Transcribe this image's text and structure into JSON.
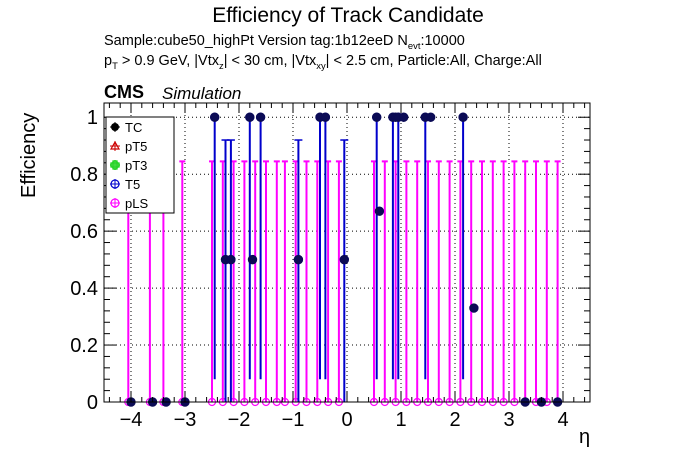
{
  "chart_data": {
    "type": "scatter",
    "title": "Efficiency of Track Candidate",
    "subtitle_sample": "Sample:cube50_highPt   Version tag:1b12eeD  N",
    "subtitle_sample_sub": "evt",
    "subtitle_sample_tail": ":10000",
    "cuts": {
      "p": "p",
      "p_sub": "T",
      "a": " > 0.9 GeV, |Vtx",
      "a_sub": "z",
      "b": "| < 30 cm, |Vtx",
      "b_sub": "xy",
      "c": "| < 2.5 cm, Particle:All, Charge:All"
    },
    "cms_label": "CMS",
    "simulation_label": "Simulation",
    "xlabel": "η",
    "ylabel": "Efficiency",
    "xlim": [
      -4.5,
      4.5
    ],
    "ylim": [
      0,
      1.05
    ],
    "x_ticks": [
      "−4",
      "−3",
      "−2",
      "−1",
      "0",
      "1",
      "2",
      "3",
      "4"
    ],
    "x_tick_values": [
      -4,
      -3,
      -2,
      -1,
      0,
      1,
      2,
      3,
      4
    ],
    "y_ticks": [
      "0",
      "0.2",
      "0.4",
      "0.6",
      "0.8",
      "1"
    ],
    "y_tick_values": [
      0,
      0.2,
      0.4,
      0.6,
      0.8,
      1
    ],
    "grid": true,
    "legend_position": "top-left",
    "legend": [
      {
        "name": "TC",
        "color": "#000000",
        "marker": "filled-circle"
      },
      {
        "name": "pT5",
        "color": "#cc0000",
        "marker": "open-triangle"
      },
      {
        "name": "pT3",
        "color": "#00cc00",
        "marker": "open-cross"
      },
      {
        "name": "T5",
        "color": "#0000cc",
        "marker": "open-circle"
      },
      {
        "name": "pLS",
        "color": "#ff00ff",
        "marker": "open-star"
      }
    ],
    "series": [
      {
        "name": "TC",
        "color": "#0b0b55",
        "points": [
          {
            "x": -4.0,
            "y": 0
          },
          {
            "x": -3.6,
            "y": 0
          },
          {
            "x": -3.35,
            "y": 0
          },
          {
            "x": -3.0,
            "y": 0
          },
          {
            "x": -2.45,
            "y": 1.0
          },
          {
            "x": -2.25,
            "y": 0.5
          },
          {
            "x": -2.15,
            "y": 0.5
          },
          {
            "x": -1.8,
            "y": 1.0
          },
          {
            "x": -1.75,
            "y": 0.5
          },
          {
            "x": -1.6,
            "y": 1.0
          },
          {
            "x": -0.9,
            "y": 0.5
          },
          {
            "x": -0.5,
            "y": 1.0
          },
          {
            "x": -0.4,
            "y": 1.0
          },
          {
            "x": -0.05,
            "y": 0.5
          },
          {
            "x": 0.55,
            "y": 1.0
          },
          {
            "x": 0.6,
            "y": 0.67
          },
          {
            "x": 0.85,
            "y": 1.0
          },
          {
            "x": 0.9,
            "y": 1.0
          },
          {
            "x": 0.95,
            "y": 1.0
          },
          {
            "x": 1.05,
            "y": 1.0
          },
          {
            "x": 1.45,
            "y": 1.0
          },
          {
            "x": 1.55,
            "y": 1.0
          },
          {
            "x": 2.15,
            "y": 1.0
          },
          {
            "x": 2.35,
            "y": 0.33
          },
          {
            "x": 3.3,
            "y": 0
          },
          {
            "x": 3.6,
            "y": 0
          },
          {
            "x": 3.9,
            "y": 0
          }
        ]
      },
      {
        "name": "T5",
        "color": "#0000cc",
        "points": [
          {
            "x": -2.45,
            "y": 1.0
          },
          {
            "x": -2.25,
            "y": 0.5
          },
          {
            "x": -2.15,
            "y": 0.5
          },
          {
            "x": -1.8,
            "y": 1.0
          },
          {
            "x": -1.6,
            "y": 1.0
          },
          {
            "x": -0.9,
            "y": 0.5
          },
          {
            "x": -0.5,
            "y": 1.0
          },
          {
            "x": -0.4,
            "y": 1.0
          },
          {
            "x": -0.05,
            "y": 0.5
          },
          {
            "x": 0.55,
            "y": 1.0
          },
          {
            "x": 0.85,
            "y": 1.0
          },
          {
            "x": 0.95,
            "y": 1.0
          },
          {
            "x": 1.45,
            "y": 1.0
          },
          {
            "x": 2.15,
            "y": 1.0
          }
        ]
      },
      {
        "name": "pLS",
        "color": "#ff00ff",
        "points": [
          {
            "x": -4.05,
            "y": 0
          },
          {
            "x": -3.65,
            "y": 0
          },
          {
            "x": -3.4,
            "y": 0
          },
          {
            "x": -3.05,
            "y": 0
          },
          {
            "x": -2.5,
            "y": 0
          },
          {
            "x": -2.3,
            "y": 0
          },
          {
            "x": -2.1,
            "y": 0
          },
          {
            "x": -1.9,
            "y": 0
          },
          {
            "x": -1.7,
            "y": 0
          },
          {
            "x": -1.5,
            "y": 0
          },
          {
            "x": -1.3,
            "y": 0
          },
          {
            "x": -1.15,
            "y": 0
          },
          {
            "x": -0.95,
            "y": 0
          },
          {
            "x": -0.75,
            "y": 0
          },
          {
            "x": -0.55,
            "y": 0
          },
          {
            "x": -0.35,
            "y": 0
          },
          {
            "x": -0.15,
            "y": 0
          },
          {
            "x": 0.5,
            "y": 0
          },
          {
            "x": 0.7,
            "y": 0
          },
          {
            "x": 0.9,
            "y": 0
          },
          {
            "x": 1.1,
            "y": 0
          },
          {
            "x": 1.3,
            "y": 0
          },
          {
            "x": 1.5,
            "y": 0
          },
          {
            "x": 1.7,
            "y": 0
          },
          {
            "x": 1.9,
            "y": 0
          },
          {
            "x": 2.1,
            "y": 0
          },
          {
            "x": 2.3,
            "y": 0
          },
          {
            "x": 2.5,
            "y": 0
          },
          {
            "x": 2.7,
            "y": 0
          },
          {
            "x": 2.9,
            "y": 0
          },
          {
            "x": 3.1,
            "y": 0
          },
          {
            "x": 3.3,
            "y": 0
          },
          {
            "x": 3.5,
            "y": 0
          },
          {
            "x": 3.7,
            "y": 0
          },
          {
            "x": 3.9,
            "y": 0
          }
        ]
      }
    ]
  }
}
